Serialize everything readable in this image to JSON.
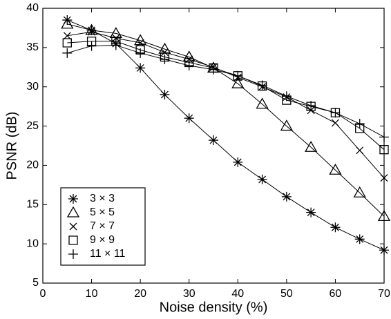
{
  "chart_data": {
    "type": "line",
    "x_label": "Noise density (%)",
    "y_label": "PSNR (dB)",
    "x": [
      5,
      10,
      15,
      20,
      25,
      30,
      35,
      40,
      45,
      50,
      55,
      60,
      65,
      70
    ],
    "xlim": [
      0,
      70
    ],
    "xticks": [
      0,
      10,
      20,
      30,
      40,
      50,
      60,
      70
    ],
    "ylim": [
      5,
      40
    ],
    "yticks": [
      5,
      10,
      15,
      20,
      25,
      30,
      35,
      40
    ],
    "legend": "lower left",
    "series": [
      {
        "name": "3 × 3",
        "color": "#000000",
        "marker": "star",
        "values": [
          38.5,
          37.2,
          35.5,
          32.4,
          29,
          26,
          23.2,
          20.4,
          18.2,
          16,
          14,
          12.1,
          10.6,
          9.2
        ]
      },
      {
        "name": "5 × 5",
        "color": "#000000",
        "marker": "triangle",
        "values": [
          38,
          37.2,
          36.8,
          35.9,
          34.8,
          33.8,
          32.4,
          30.4,
          27.8,
          25,
          22.3,
          19.4,
          16.5,
          13.5
        ]
      },
      {
        "name": "7 × 7",
        "color": "#000000",
        "marker": "x",
        "values": [
          36.5,
          37,
          36.2,
          35.6,
          34.4,
          33.5,
          32.5,
          31.2,
          30,
          28.7,
          27,
          25.4,
          21.9,
          18.4
        ]
      },
      {
        "name": "9 × 9",
        "color": "#000000",
        "marker": "square",
        "values": [
          35.6,
          35.8,
          35.8,
          34.7,
          33.8,
          33.1,
          32.4,
          31.4,
          30.1,
          28.3,
          27.5,
          26.7,
          24.7,
          22
        ]
      },
      {
        "name": "11 × 11",
        "color": "#000000",
        "marker": "plus",
        "values": [
          34.3,
          35.2,
          35.3,
          34.3,
          33.5,
          32.7,
          32.2,
          31.4,
          30.2,
          28.8,
          27.6,
          26.7,
          25.3,
          23.6
        ]
      }
    ]
  }
}
